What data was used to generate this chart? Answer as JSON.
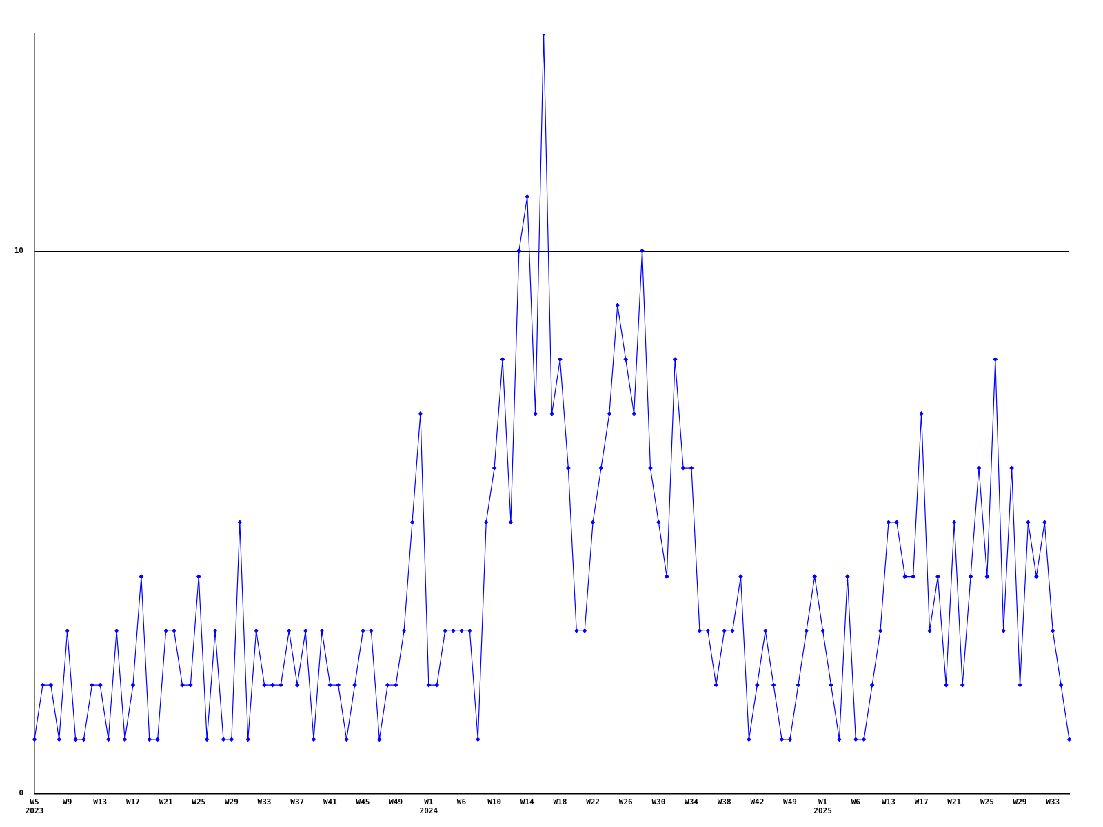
{
  "chart_data": {
    "type": "line",
    "categories": [
      "W5\n2023",
      null,
      null,
      null,
      "W9",
      null,
      null,
      null,
      "W13",
      null,
      null,
      null,
      "W17",
      null,
      null,
      null,
      "W21",
      null,
      null,
      null,
      "W25",
      null,
      null,
      null,
      "W29",
      null,
      null,
      null,
      "W33",
      null,
      null,
      null,
      "W37",
      null,
      null,
      null,
      "W41",
      null,
      null,
      null,
      "W45",
      null,
      null,
      null,
      "W49",
      null,
      null,
      null,
      "W1\n2024",
      null,
      null,
      null,
      "W6",
      null,
      null,
      null,
      "W10",
      null,
      null,
      null,
      "W14",
      null,
      null,
      null,
      "W18",
      null,
      null,
      null,
      "W22",
      null,
      null,
      null,
      "W26",
      null,
      null,
      null,
      "W30",
      null,
      null,
      null,
      "W34",
      null,
      null,
      null,
      "W38",
      null,
      null,
      null,
      "W42",
      null,
      null,
      null,
      "W49",
      null,
      null,
      null,
      "W1\n2025",
      null,
      null,
      null,
      "W6",
      null,
      null,
      null,
      "W13",
      null,
      null,
      null,
      "W17",
      null,
      null,
      null,
      "W21",
      null,
      null,
      null,
      "W25",
      null,
      null,
      null,
      "W29",
      null,
      null,
      null,
      "W33",
      null,
      null
    ],
    "series": [
      {
        "color": "#0000ff",
        "values": [
          1,
          2,
          2,
          1,
          3,
          1,
          1,
          2,
          2,
          1,
          3,
          1,
          2,
          4,
          1,
          1,
          3,
          3,
          2,
          2,
          4,
          1,
          3,
          1,
          1,
          5,
          1,
          3,
          2,
          2,
          2,
          3,
          2,
          3,
          1,
          3,
          2,
          2,
          1,
          2,
          3,
          3,
          1,
          2,
          2,
          3,
          5,
          7,
          2,
          2,
          3,
          3,
          3,
          3,
          1,
          5,
          6,
          8,
          5,
          10,
          11,
          7,
          14,
          7,
          8,
          6,
          3,
          3,
          5,
          6,
          7,
          9,
          8,
          7,
          10,
          6,
          5,
          4,
          8,
          6,
          6,
          3,
          3,
          2,
          3,
          3,
          4,
          1,
          2,
          3,
          2,
          1,
          1,
          2,
          3,
          4,
          3,
          2,
          1,
          4,
          1,
          1,
          2,
          3,
          5,
          5,
          4,
          4,
          7,
          3,
          4,
          2,
          5,
          2,
          4,
          6,
          4,
          8,
          3,
          6,
          2,
          5,
          4,
          5,
          3,
          2,
          1
        ]
      }
    ],
    "ylim": [
      0,
      14
    ],
    "yticks": [
      0,
      10
    ],
    "grid": "y",
    "legend": false,
    "marker": "diamond",
    "line_style": "solid"
  }
}
